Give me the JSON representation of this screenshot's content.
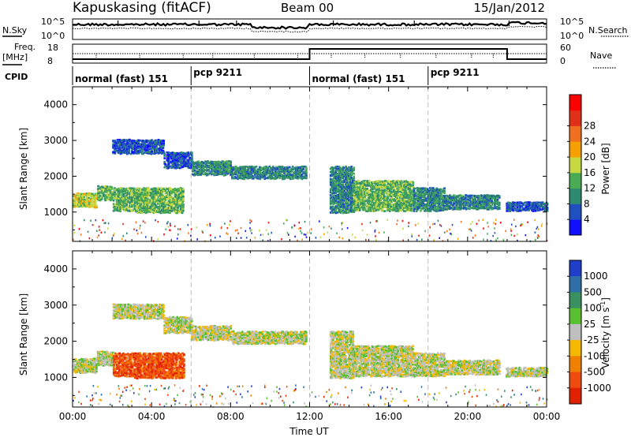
{
  "header": {
    "station": "Kapuskasing (fitACF)",
    "beam": "Beam 00",
    "date": "15/Jan/2012"
  },
  "summary": {
    "nsky": {
      "label": "N.Sky",
      "ticks": [
        "10^5",
        "10^0"
      ]
    },
    "nsearch": {
      "label": "N.Search",
      "ticks": [
        "10^5",
        "10^0"
      ]
    },
    "freq": {
      "label_line1": "Freq.",
      "label_line2": "[MHz]",
      "ticks": [
        "18",
        "8"
      ]
    },
    "nave": {
      "label": "Nave",
      "ticks": [
        "60",
        "0"
      ]
    },
    "cpid": {
      "label": "CPID"
    },
    "modes": [
      {
        "text": "normal (fast) 151",
        "start_h": 0,
        "end_h": 6
      },
      {
        "text": "pcp 9211",
        "start_h": 6,
        "end_h": 12
      },
      {
        "text": "normal (fast) 151",
        "start_h": 12,
        "end_h": 18
      },
      {
        "text": "pcp 9211",
        "start_h": 18,
        "end_h": 24
      }
    ]
  },
  "chart_data": [
    {
      "type": "heatmap",
      "name": "power",
      "ylabel": "Slant Range [km]",
      "xlabel": "",
      "xlim_hours": [
        0,
        24
      ],
      "ylim": [
        180,
        4500
      ],
      "yticks": [
        1000,
        2000,
        3000,
        4000
      ],
      "colorbar": {
        "label": "Power [dB]",
        "ticks": [
          "4",
          "8",
          "12",
          "16",
          "20",
          "24",
          "28"
        ],
        "colors": [
          "#1010ff",
          "#2050c0",
          "#2e8a70",
          "#4aab55",
          "#c8d840",
          "#f5a000",
          "#f07020",
          "#e23018",
          "#ff0000"
        ]
      },
      "bands": [
        {
          "t": [
            0.0,
            1.2
          ],
          "r": [
            1150,
            1550
          ],
          "c": 4
        },
        {
          "t": [
            1.2,
            2.0
          ],
          "r": [
            1350,
            1750
          ],
          "c": 3
        },
        {
          "t": [
            2.0,
            3.1
          ],
          "r": [
            1050,
            1700
          ],
          "c": 3
        },
        {
          "t": [
            3.1,
            5.6
          ],
          "r": [
            1000,
            1700
          ],
          "c": 3
        },
        {
          "t": [
            2.0,
            4.6
          ],
          "r": [
            2650,
            3050
          ],
          "c": 1
        },
        {
          "t": [
            4.6,
            6.0
          ],
          "r": [
            2250,
            2700
          ],
          "c": 1
        },
        {
          "t": [
            6.0,
            8.0
          ],
          "r": [
            2050,
            2450
          ],
          "c": 2
        },
        {
          "t": [
            8.0,
            11.8
          ],
          "r": [
            1950,
            2300
          ],
          "c": 2
        },
        {
          "t": [
            13.0,
            14.2
          ],
          "r": [
            1000,
            2300
          ],
          "c": 2
        },
        {
          "t": [
            14.2,
            17.2
          ],
          "r": [
            1050,
            1900
          ],
          "c": 3
        },
        {
          "t": [
            17.2,
            18.8
          ],
          "r": [
            1050,
            1700
          ],
          "c": 2
        },
        {
          "t": [
            18.8,
            21.6
          ],
          "r": [
            1100,
            1500
          ],
          "c": 2
        },
        {
          "t": [
            21.9,
            24.0
          ],
          "r": [
            1050,
            1300
          ],
          "c": 1
        }
      ]
    },
    {
      "type": "heatmap",
      "name": "velocity",
      "ylabel": "Slant Range [km]",
      "xlabel": "Time UT",
      "xlim_hours": [
        0,
        24
      ],
      "ylim": [
        180,
        4500
      ],
      "yticks": [
        1000,
        2000,
        3000,
        4000
      ],
      "xticks": [
        "00:00",
        "04:00",
        "08:00",
        "12:00",
        "16:00",
        "20:00",
        "00:00"
      ],
      "colorbar": {
        "label": "Velocity [m s",
        "label_sup": "-1",
        "label_end": "]",
        "ticks": [
          "1000",
          "500",
          "100",
          "25",
          "-25",
          "-100",
          "-500",
          "-1000"
        ],
        "colors": [
          "#1f3fc8",
          "#2e6fa8",
          "#3a9060",
          "#58c030",
          "#bfbfbf",
          "#f5b800",
          "#f08000",
          "#f04a10",
          "#e02000"
        ]
      },
      "bands": [
        {
          "t": [
            0.0,
            1.2
          ],
          "r": [
            1150,
            1550
          ],
          "c": 4
        },
        {
          "t": [
            1.2,
            2.0
          ],
          "r": [
            1350,
            1750
          ],
          "c": 4
        },
        {
          "t": [
            2.0,
            3.1
          ],
          "r": [
            1050,
            1700
          ],
          "c": 7
        },
        {
          "t": [
            3.1,
            5.6
          ],
          "r": [
            1000,
            1700
          ],
          "c": 7
        },
        {
          "t": [
            2.0,
            4.6
          ],
          "r": [
            2650,
            3050
          ],
          "c": 4
        },
        {
          "t": [
            4.6,
            6.0
          ],
          "r": [
            2250,
            2700
          ],
          "c": 4
        },
        {
          "t": [
            6.0,
            8.0
          ],
          "r": [
            2050,
            2450
          ],
          "c": 4
        },
        {
          "t": [
            8.0,
            11.8
          ],
          "r": [
            1950,
            2300
          ],
          "c": 4
        },
        {
          "t": [
            13.0,
            14.2
          ],
          "r": [
            1000,
            2300
          ],
          "c": 4
        },
        {
          "t": [
            14.2,
            17.2
          ],
          "r": [
            1050,
            1900
          ],
          "c": 4
        },
        {
          "t": [
            17.2,
            18.8
          ],
          "r": [
            1050,
            1700
          ],
          "c": 4
        },
        {
          "t": [
            18.8,
            21.6
          ],
          "r": [
            1100,
            1500
          ],
          "c": 4
        },
        {
          "t": [
            21.9,
            24.0
          ],
          "r": [
            1050,
            1300
          ],
          "c": 4
        }
      ]
    }
  ]
}
